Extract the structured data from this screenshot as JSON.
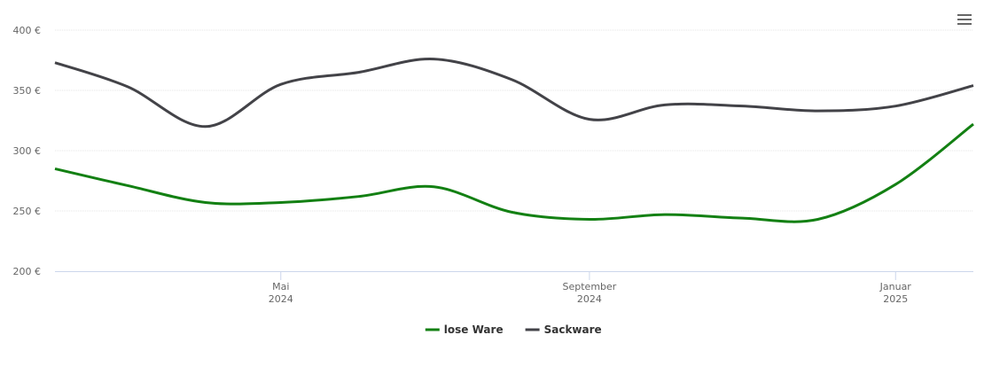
{
  "chart_data": {
    "type": "line",
    "x": [
      "2024-02",
      "2024-03",
      "2024-04",
      "2024-05",
      "2024-06",
      "2024-07",
      "2024-08",
      "2024-09",
      "2024-10",
      "2024-11",
      "2024-12",
      "2025-01",
      "2025-02"
    ],
    "series": [
      {
        "name": "lose Ware",
        "color": "#138013",
        "values": [
          285,
          271,
          257,
          257,
          262,
          270,
          249,
          243,
          247,
          244,
          243,
          272,
          322
        ]
      },
      {
        "name": "Sackware",
        "color": "#434348",
        "values": [
          373,
          353,
          320,
          355,
          365,
          376,
          359,
          326,
          338,
          337,
          333,
          337,
          354
        ]
      }
    ],
    "xlim": [
      "2024-02",
      "2025-02"
    ],
    "xticks": [
      {
        "value": "2024-05",
        "label": "Mai 2024"
      },
      {
        "value": "2024-09",
        "label": "September 2024"
      },
      {
        "value": "2025-01",
        "label": "Januar 2025"
      }
    ],
    "ylim": [
      200,
      400
    ],
    "yticks": [
      {
        "value": 200,
        "label": "200 €"
      },
      {
        "value": 250,
        "label": "250 €"
      },
      {
        "value": 300,
        "label": "300 €"
      },
      {
        "value": 350,
        "label": "350 €"
      },
      {
        "value": 400,
        "label": "400 €"
      }
    ],
    "grid": true,
    "legend": "bottom"
  }
}
